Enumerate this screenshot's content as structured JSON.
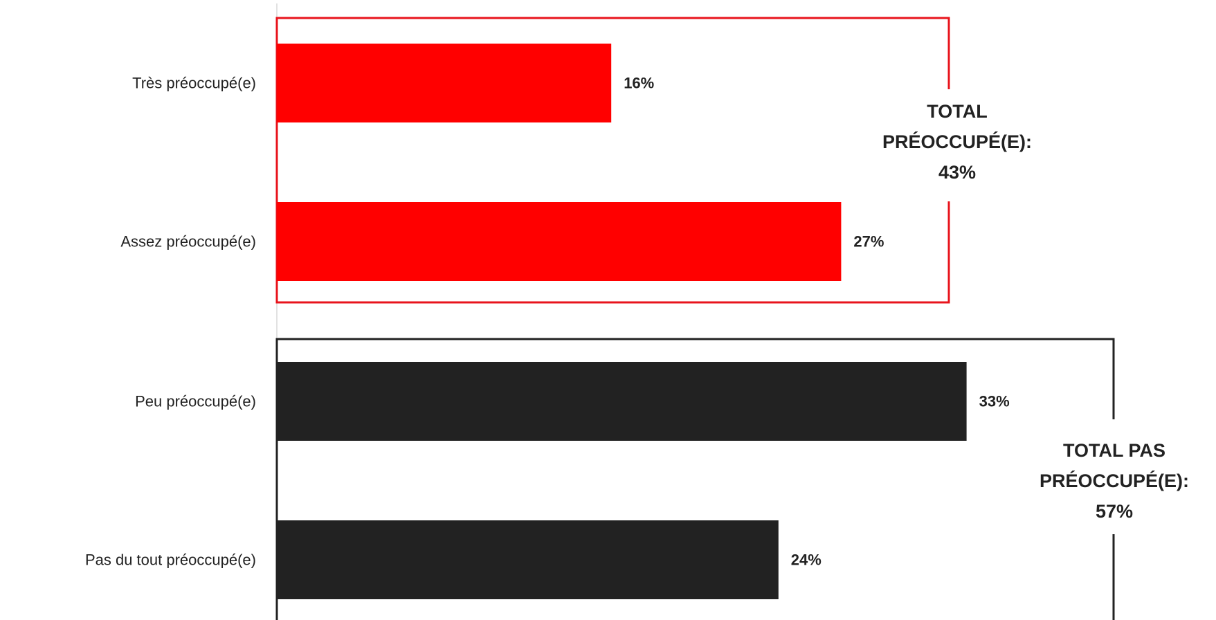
{
  "chart_data": {
    "type": "bar",
    "orientation": "horizontal",
    "categories": [
      "Très préoccupé(e)",
      "Assez préoccupé(e)",
      "Peu préoccupé(e)",
      "Pas du tout préoccupé(e)"
    ],
    "values": [
      16,
      27,
      33,
      24
    ],
    "value_labels": [
      "16%",
      "27%",
      "33%",
      "24%"
    ],
    "bar_colors": [
      "#ff0000",
      "#ff0000",
      "#222222",
      "#222222"
    ],
    "xlim": [
      0,
      50
    ],
    "grid": false,
    "legend": "none",
    "groups": [
      {
        "members": [
          0,
          1
        ],
        "color": "#e8141c",
        "label_lines": [
          "TOTAL",
          "PRÉOCCUPÉ(E):",
          "43%"
        ],
        "total": 43
      },
      {
        "members": [
          2,
          3
        ],
        "color": "#222222",
        "label_lines": [
          "TOTAL PAS",
          "PRÉOCCUPÉ(E):",
          "57%"
        ],
        "total": 57
      }
    ]
  }
}
